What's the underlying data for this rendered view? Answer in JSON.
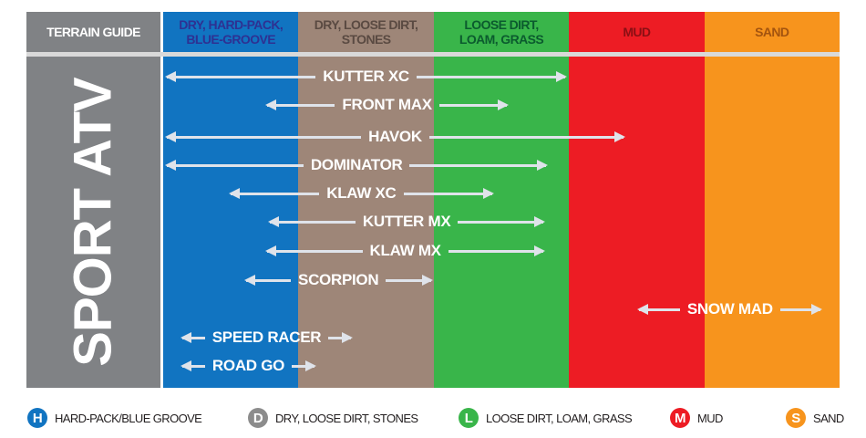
{
  "header": {
    "title": "TERRAIN GUIDE"
  },
  "side_title": "SPORT ATV",
  "columns": [
    {
      "label": "DRY, HARD-PACK, BLUE-GROOVE",
      "color": "#1174c1",
      "text_color": "#2e3192"
    },
    {
      "label": "DRY, LOOSE DIRT, STONES",
      "color": "#9e8678",
      "text_color": "#5a4a42"
    },
    {
      "label": "LOOSE DIRT, LOAM, GRASS",
      "color": "#39b54a",
      "text_color": "#0b5b2e"
    },
    {
      "label": "MUD",
      "color": "#ed1c24",
      "text_color": "#8b0f14"
    },
    {
      "label": "SAND",
      "color": "#f7941d",
      "text_color": "#a3540f"
    }
  ],
  "tires_note": "start/end are terrain coverage in column units (0 = start of DRY, HARD-PACK; 5 = end of SAND)",
  "tires": [
    {
      "name": "KUTTER XC",
      "start": 0.03,
      "end": 2.97
    },
    {
      "name": "FRONT MAX",
      "start": 0.77,
      "end": 2.54
    },
    {
      "name": "HAVOK",
      "start": 0.03,
      "end": 3.4
    },
    {
      "name": "DOMINATOR",
      "start": 0.03,
      "end": 2.83
    },
    {
      "name": "KLAW XC",
      "start": 0.5,
      "end": 2.43
    },
    {
      "name": "KUTTER MX",
      "start": 0.79,
      "end": 2.81
    },
    {
      "name": "KLAW MX",
      "start": 0.77,
      "end": 2.81
    },
    {
      "name": "SCORPION",
      "start": 0.61,
      "end": 1.98
    },
    {
      "name": "SNOW MAD",
      "start": 3.52,
      "end": 4.86
    },
    {
      "name": "SPEED RACER",
      "start": 0.14,
      "end": 1.39
    },
    {
      "name": "ROAD GO",
      "start": 0.14,
      "end": 1.12
    }
  ],
  "legend": [
    {
      "letter": "H",
      "label": "HARD-PACK/BLUE GROOVE",
      "color": "#1174c1"
    },
    {
      "letter": "D",
      "label": "DRY, LOOSE DIRT, STONES",
      "color": "#8c8c8c"
    },
    {
      "letter": "L",
      "label": "LOOSE DIRT, LOAM, GRASS",
      "color": "#39b54a"
    },
    {
      "letter": "M",
      "label": "MUD",
      "color": "#ed1c24"
    },
    {
      "letter": "S",
      "label": "SAND",
      "color": "#f7941d"
    }
  ]
}
